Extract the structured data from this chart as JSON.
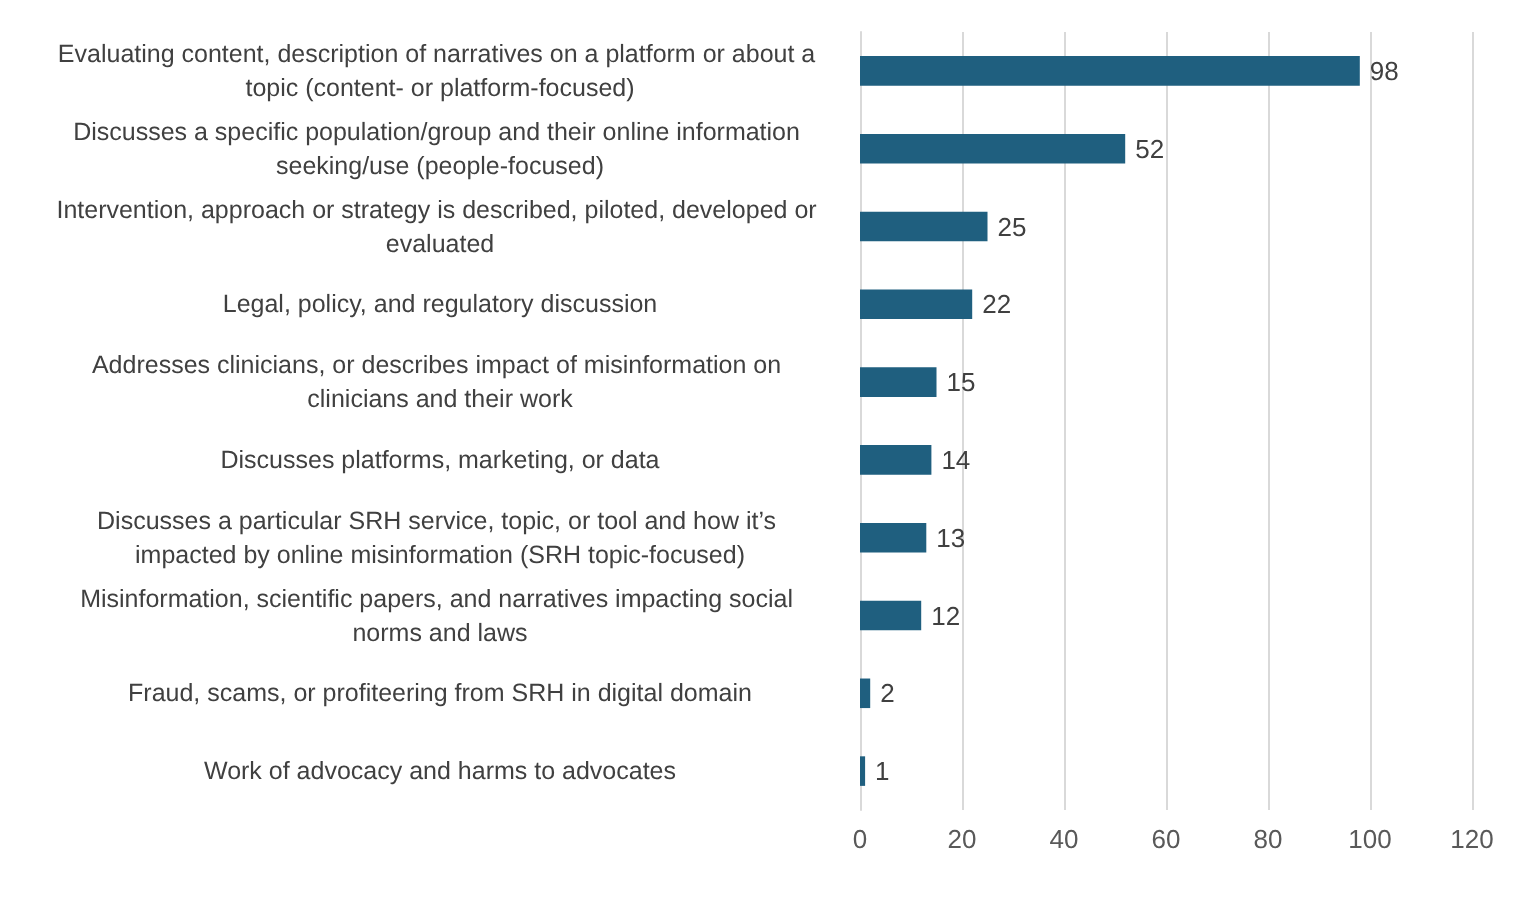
{
  "chart_data": {
    "type": "bar",
    "orientation": "horizontal",
    "categories": [
      "Evaluating content, description of narratives on a platform or about a topic (content- or platform-focused)",
      "Discusses a specific population/group and their online information seeking/use (people-focused)",
      "Intervention, approach or strategy is described, piloted, developed or evaluated",
      "Legal, policy, and regulatory discussion",
      "Addresses clinicians, or describes impact of misinformation on clinicians and their work",
      "Discusses platforms, marketing, or data",
      "Discusses a particular SRH service, topic, or tool and how it’s impacted by online misinformation (SRH topic-focused)",
      "Misinformation, scientific papers, and narratives impacting social norms and laws",
      "Fraud, scams, or profiteering from SRH in digital domain",
      "Work of advocacy and harms to advocates"
    ],
    "values": [
      98,
      52,
      25,
      22,
      15,
      14,
      13,
      12,
      2,
      1
    ],
    "color": "#1f5f7f",
    "data_labels": true,
    "xlim": [
      0,
      120
    ],
    "xticks": [
      0,
      20,
      40,
      60,
      80,
      100,
      120
    ],
    "grid": "x"
  }
}
